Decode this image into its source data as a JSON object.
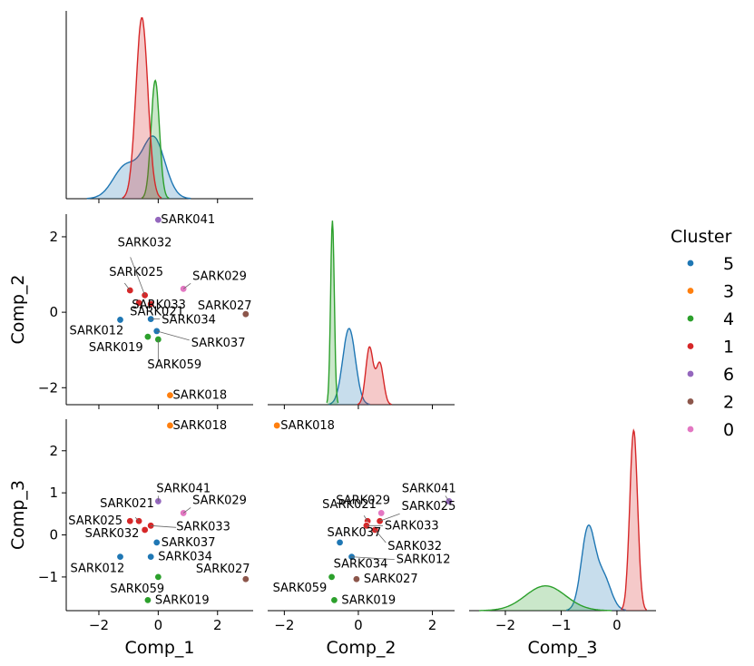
{
  "chart_data": {
    "type": "scatter",
    "layout": "pairplot-lower-triangle",
    "variables": [
      "Comp_1",
      "Comp_2",
      "Comp_3"
    ],
    "axis_labels": {
      "x": [
        "Comp_1",
        "Comp_2",
        "Comp_3"
      ],
      "y": [
        "",
        "Comp_2",
        "Comp_3"
      ]
    },
    "axes": {
      "Comp_1": {
        "range": [
          -3.1,
          3.2
        ],
        "ticks": [
          -2,
          0,
          2
        ]
      },
      "Comp_2": {
        "range": [
          -2.45,
          2.6
        ],
        "ticks": [
          -2,
          0,
          2
        ]
      },
      "Comp_3": {
        "range": [
          -1.8,
          2.75
        ],
        "ticks": [
          -1,
          0,
          1,
          2
        ]
      },
      "Comp_3_diag": {
        "range": [
          -2.65,
          0.7
        ],
        "ticks": [
          -2,
          -1,
          0
        ]
      }
    },
    "legend": {
      "title": "Cluster",
      "placement": "right",
      "entries": [
        {
          "label": "5",
          "color": "#1f77b4"
        },
        {
          "label": "3",
          "color": "#ff7f0e"
        },
        {
          "label": "4",
          "color": "#2ca02c"
        },
        {
          "label": "1",
          "color": "#d62728"
        },
        {
          "label": "6",
          "color": "#9467bd"
        },
        {
          "label": "2",
          "color": "#8c564b"
        },
        {
          "label": "0",
          "color": "#e377c2"
        }
      ]
    },
    "points": [
      {
        "name": "SARK012",
        "cluster": "5",
        "x1": -1.28,
        "x2": -0.2,
        "x3": -0.52
      },
      {
        "name": "SARK034",
        "cluster": "5",
        "x1": -0.25,
        "x2": -0.18,
        "x3": -0.52
      },
      {
        "name": "SARK037",
        "cluster": "5",
        "x1": -0.05,
        "x2": -0.5,
        "x3": -0.18
      },
      {
        "name": "SARK018",
        "cluster": "3",
        "x1": 0.4,
        "x2": -2.2,
        "x3": 2.6
      },
      {
        "name": "SARK019",
        "cluster": "4",
        "x1": -0.35,
        "x2": -0.65,
        "x3": -1.55
      },
      {
        "name": "SARK059",
        "cluster": "4",
        "x1": 0.0,
        "x2": -0.72,
        "x3": -1.0
      },
      {
        "name": "SARK025",
        "cluster": "1",
        "x1": -0.95,
        "x2": 0.58,
        "x3": 0.33
      },
      {
        "name": "SARK032",
        "cluster": "1",
        "x1": -0.45,
        "x2": 0.45,
        "x3": 0.12
      },
      {
        "name": "SARK021",
        "cluster": "1",
        "x1": -0.65,
        "x2": 0.25,
        "x3": 0.33
      },
      {
        "name": "SARK033",
        "cluster": "1",
        "x1": -0.25,
        "x2": 0.22,
        "x3": 0.22
      },
      {
        "name": "SARK041",
        "cluster": "6",
        "x1": 0.0,
        "x2": 2.45,
        "x3": 0.8
      },
      {
        "name": "SARK027",
        "cluster": "2",
        "x1": 2.95,
        "x2": -0.05,
        "x3": -1.05
      },
      {
        "name": "SARK029",
        "cluster": "0",
        "x1": 0.85,
        "x2": 0.62,
        "x3": 0.52
      }
    ],
    "kde_diagonal": {
      "Comp_1": [
        {
          "cluster": "5",
          "peak": 0.45,
          "components": [
            {
              "mu": -0.15,
              "sigma": 0.38,
              "w": 0.65
            },
            {
              "mu": -1.1,
              "sigma": 0.42,
              "w": 0.35
            }
          ]
        },
        {
          "cluster": "4",
          "peak": 0.85,
          "components": [
            {
              "mu": -0.1,
              "sigma": 0.14,
              "w": 1
            }
          ]
        },
        {
          "cluster": "1",
          "peak": 1.3,
          "components": [
            {
              "mu": -0.55,
              "sigma": 0.2,
              "w": 1
            }
          ]
        }
      ],
      "Comp_2": [
        {
          "cluster": "5",
          "peak": 0.58,
          "components": [
            {
              "mu": -0.25,
              "sigma": 0.17,
              "w": 1
            }
          ]
        },
        {
          "cluster": "4",
          "peak": 1.4,
          "components": [
            {
              "mu": -0.7,
              "sigma": 0.05,
              "w": 1
            }
          ]
        },
        {
          "cluster": "1",
          "peak": 0.44,
          "components": [
            {
              "mu": 0.3,
              "sigma": 0.1,
              "w": 0.58
            },
            {
              "mu": 0.58,
              "sigma": 0.1,
              "w": 0.42
            }
          ]
        }
      ],
      "Comp_3": [
        {
          "cluster": "5",
          "peak": 0.76,
          "components": [
            {
              "mu": -0.52,
              "sigma": 0.12,
              "w": 0.7
            },
            {
              "mu": -0.25,
              "sigma": 0.14,
              "w": 0.3
            }
          ]
        },
        {
          "cluster": "4",
          "peak": 0.22,
          "components": [
            {
              "mu": -1.28,
              "sigma": 0.36,
              "w": 1
            }
          ]
        },
        {
          "cluster": "1",
          "peak": 1.6,
          "components": [
            {
              "mu": 0.3,
              "sigma": 0.07,
              "w": 1
            }
          ]
        }
      ]
    }
  }
}
